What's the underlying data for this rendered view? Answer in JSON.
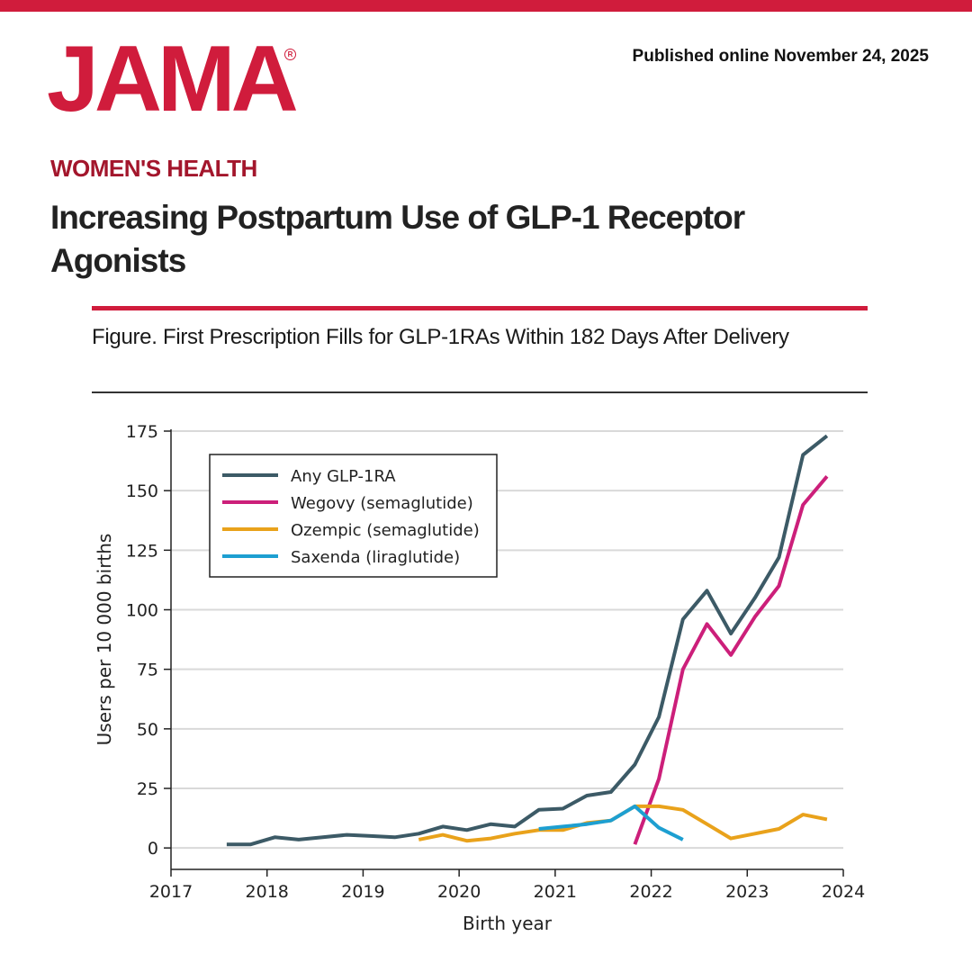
{
  "header": {
    "logo": "JAMA",
    "published": "Published online November 24, 2025",
    "section": "WOMEN'S HEALTH",
    "headline": "Increasing Postpartum Use of GLP-1 Receptor Agonists",
    "figure_title": "Figure. First Prescription Fills for GLP-1RAs Within 182 Days After Delivery"
  },
  "colors": {
    "brand": "#d01c3c",
    "section": "#a3162c"
  },
  "chart_data": {
    "type": "line",
    "title": "",
    "xlabel": "Birth year",
    "ylabel": "Users per 10 000 births",
    "xlim": [
      2017,
      2024
    ],
    "ylim": [
      -9,
      175
    ],
    "x_ticks": [
      2017,
      2018,
      2019,
      2020,
      2021,
      2022,
      2023,
      2024
    ],
    "y_ticks": [
      0,
      25,
      50,
      75,
      100,
      125,
      150,
      175
    ],
    "grid": "horizontal",
    "legend": "top-left",
    "series": [
      {
        "name": "Any GLP-1RA",
        "color": "#3c5a66",
        "points": [
          [
            2017.58,
            1.5
          ],
          [
            2017.83,
            1.5
          ],
          [
            2018.08,
            4.5
          ],
          [
            2018.33,
            3.5
          ],
          [
            2018.58,
            4.5
          ],
          [
            2018.83,
            5.5
          ],
          [
            2019.08,
            5
          ],
          [
            2019.33,
            4.5
          ],
          [
            2019.58,
            6
          ],
          [
            2019.83,
            9
          ],
          [
            2020.08,
            7.5
          ],
          [
            2020.33,
            10
          ],
          [
            2020.58,
            9
          ],
          [
            2020.83,
            16
          ],
          [
            2021.08,
            16.5
          ],
          [
            2021.33,
            22
          ],
          [
            2021.58,
            23.5
          ],
          [
            2021.83,
            35
          ],
          [
            2022.08,
            55
          ],
          [
            2022.33,
            96
          ],
          [
            2022.58,
            108
          ],
          [
            2022.83,
            90
          ],
          [
            2023.08,
            105
          ],
          [
            2023.33,
            122
          ],
          [
            2023.58,
            165
          ],
          [
            2023.83,
            173
          ]
        ]
      },
      {
        "name": "Wegovy (semaglutide)",
        "color": "#cc1f7a",
        "points": [
          [
            2021.83,
            1.5
          ],
          [
            2022.08,
            29
          ],
          [
            2022.33,
            75
          ],
          [
            2022.58,
            94
          ],
          [
            2022.83,
            81
          ],
          [
            2023.08,
            97
          ],
          [
            2023.33,
            110
          ],
          [
            2023.58,
            144
          ],
          [
            2023.83,
            156
          ]
        ]
      },
      {
        "name": "Ozempic (semaglutide)",
        "color": "#e9a21b",
        "points": [
          [
            2019.58,
            3.5
          ],
          [
            2019.83,
            5.5
          ],
          [
            2020.08,
            3
          ],
          [
            2020.33,
            4
          ],
          [
            2020.58,
            6
          ],
          [
            2020.83,
            7.5
          ],
          [
            2021.08,
            7.5
          ],
          [
            2021.33,
            10.5
          ],
          [
            2021.58,
            11.5
          ],
          [
            2021.83,
            17.5
          ],
          [
            2022.08,
            17.5
          ],
          [
            2022.33,
            16
          ],
          [
            2022.58,
            10
          ],
          [
            2022.83,
            4
          ],
          [
            2023.08,
            6
          ],
          [
            2023.33,
            8
          ],
          [
            2023.58,
            14
          ],
          [
            2023.83,
            12
          ]
        ]
      },
      {
        "name": "Saxenda (liraglutide)",
        "color": "#1d9fd1",
        "points": [
          [
            2020.83,
            8
          ],
          [
            2021.08,
            9
          ],
          [
            2021.33,
            10
          ],
          [
            2021.58,
            11.5
          ],
          [
            2021.83,
            17.5
          ],
          [
            2022.08,
            8.5
          ],
          [
            2022.33,
            3.5
          ]
        ]
      }
    ]
  }
}
